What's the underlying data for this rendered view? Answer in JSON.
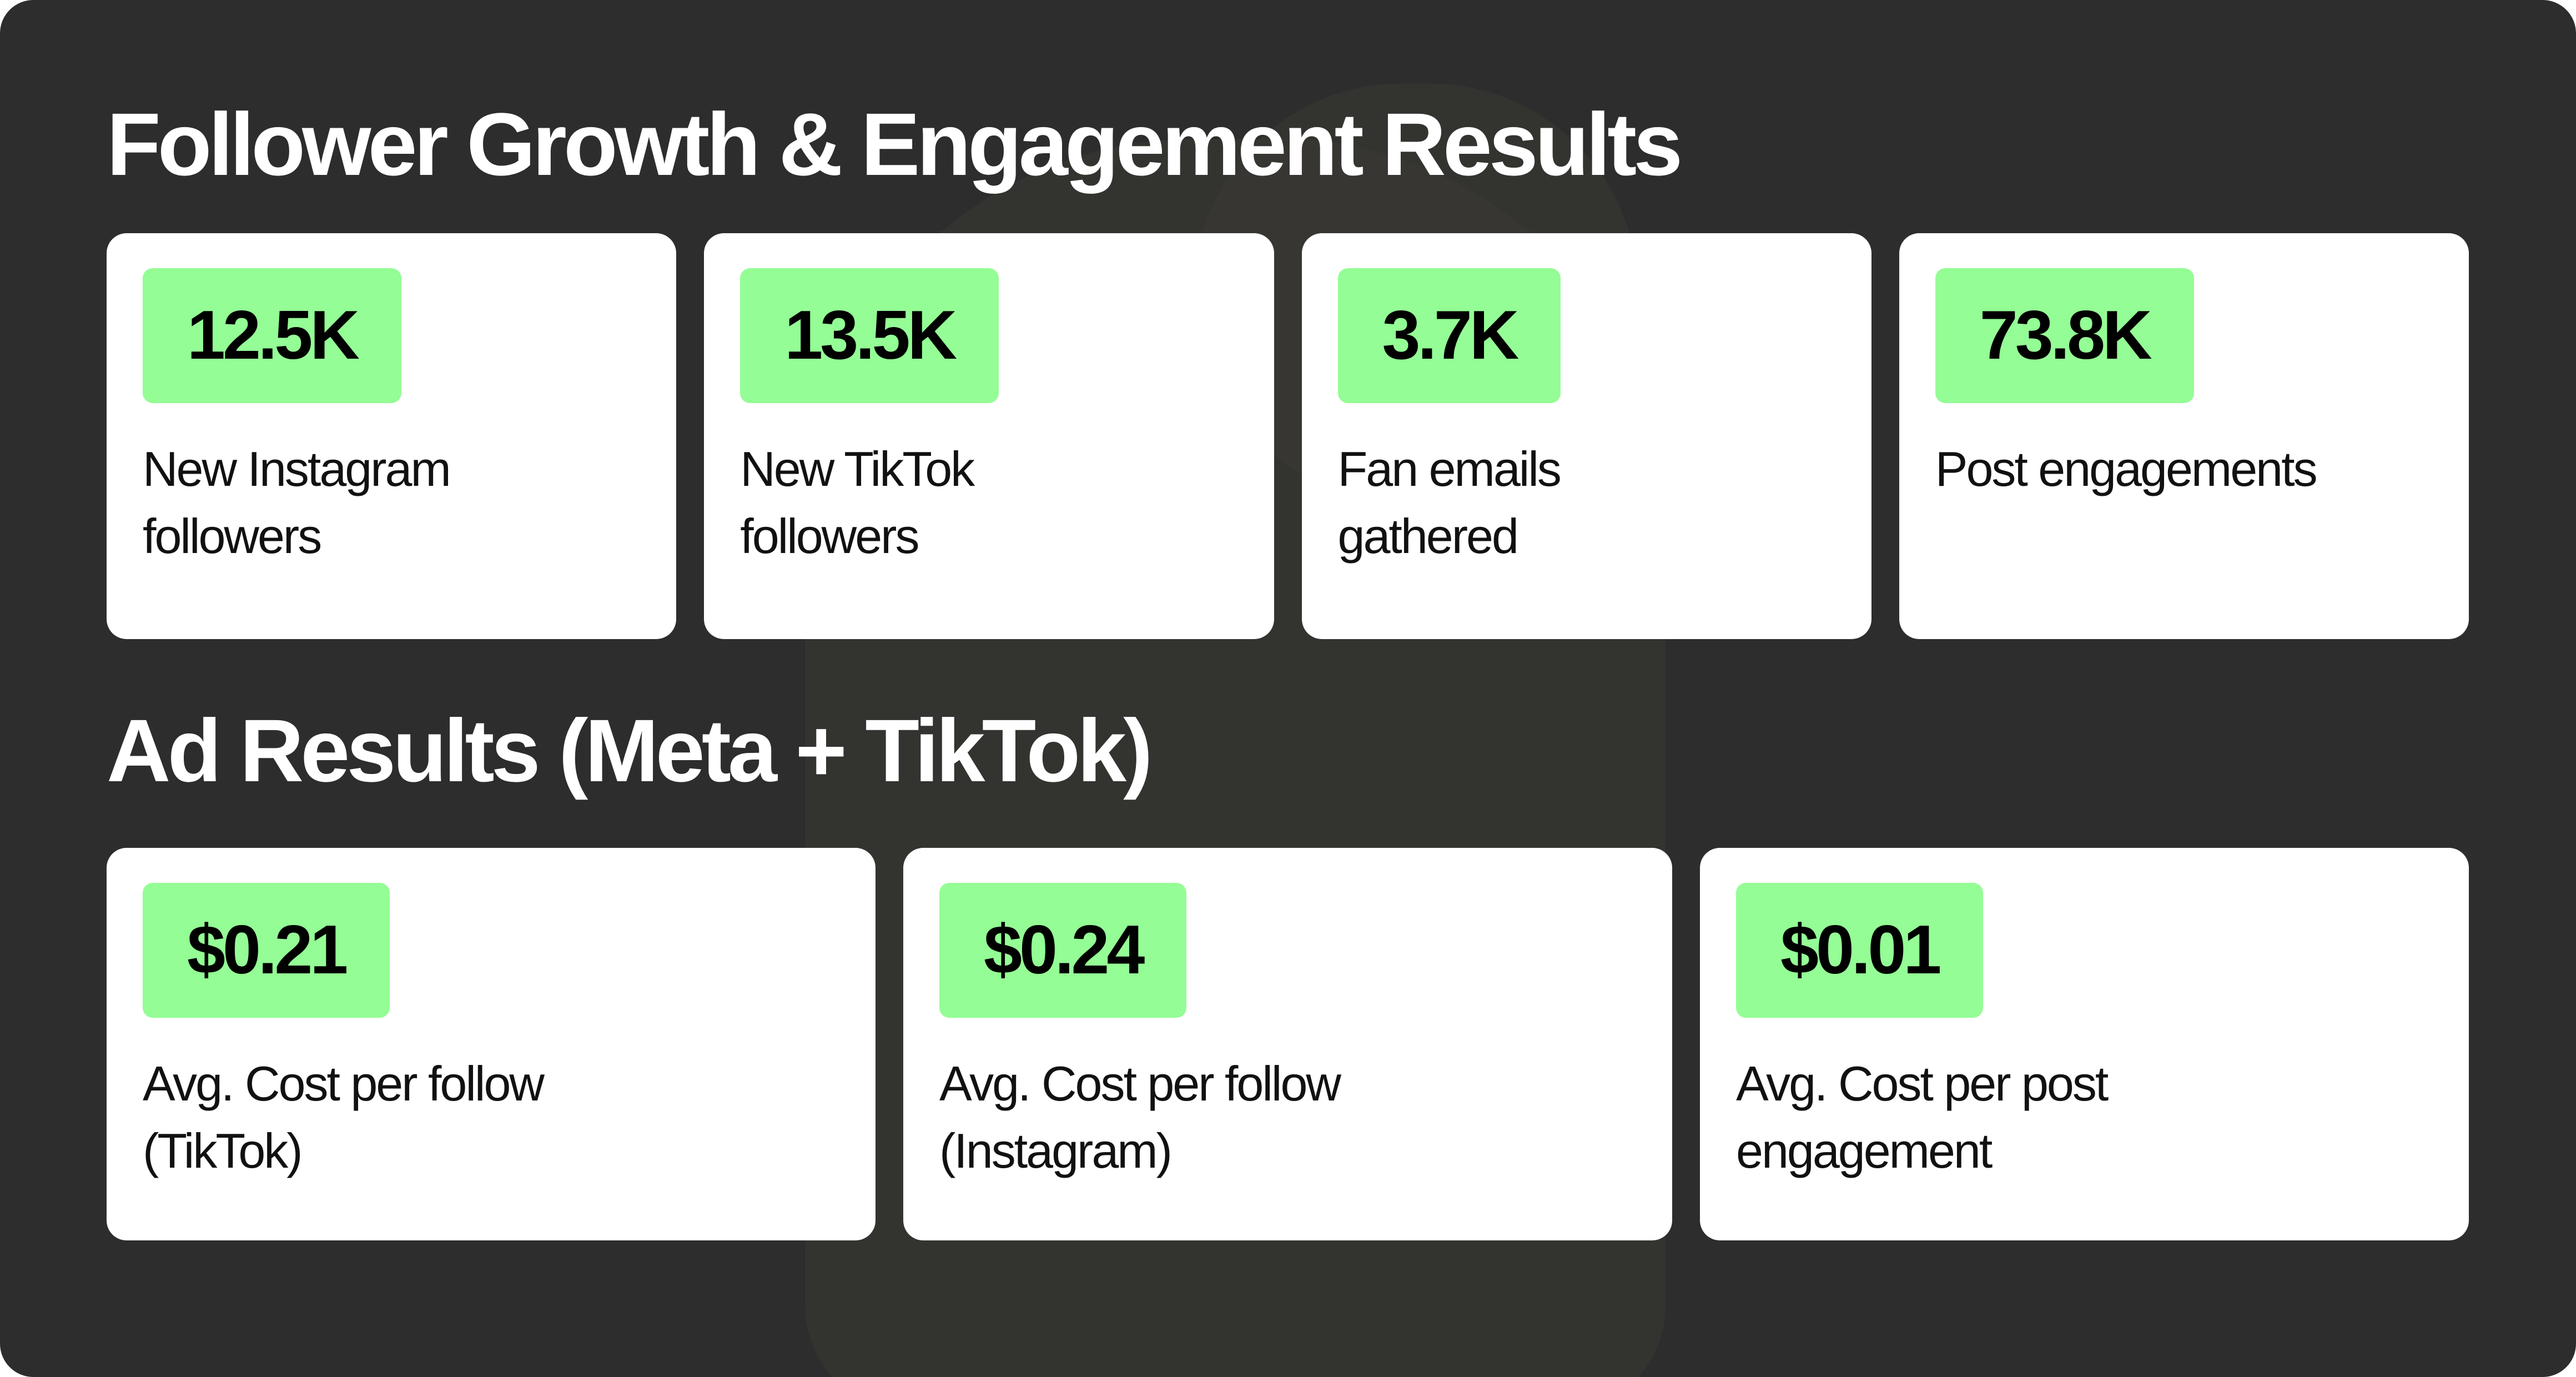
{
  "sections": [
    {
      "title": "Follower Growth & Engagement Results",
      "cards": [
        {
          "value": "12.5K",
          "label": [
            "New Instagram",
            "followers"
          ]
        },
        {
          "value": "13.5K",
          "label": [
            "New TikTok",
            "followers"
          ]
        },
        {
          "value": "3.7K",
          "label": [
            "Fan emails",
            "gathered"
          ]
        },
        {
          "value": "73.8K",
          "label": [
            "Post engagements"
          ]
        }
      ]
    },
    {
      "title": "Ad Results (Meta + TikTok)",
      "cards": [
        {
          "value": "$0.21",
          "label": [
            "Avg. Cost per follow",
            "(TikTok)"
          ]
        },
        {
          "value": "$0.24",
          "label": [
            "Avg. Cost per follow",
            "(Instagram)"
          ]
        },
        {
          "value": "$0.01",
          "label": [
            "Avg. Cost per post",
            "engagement"
          ]
        }
      ]
    }
  ]
}
